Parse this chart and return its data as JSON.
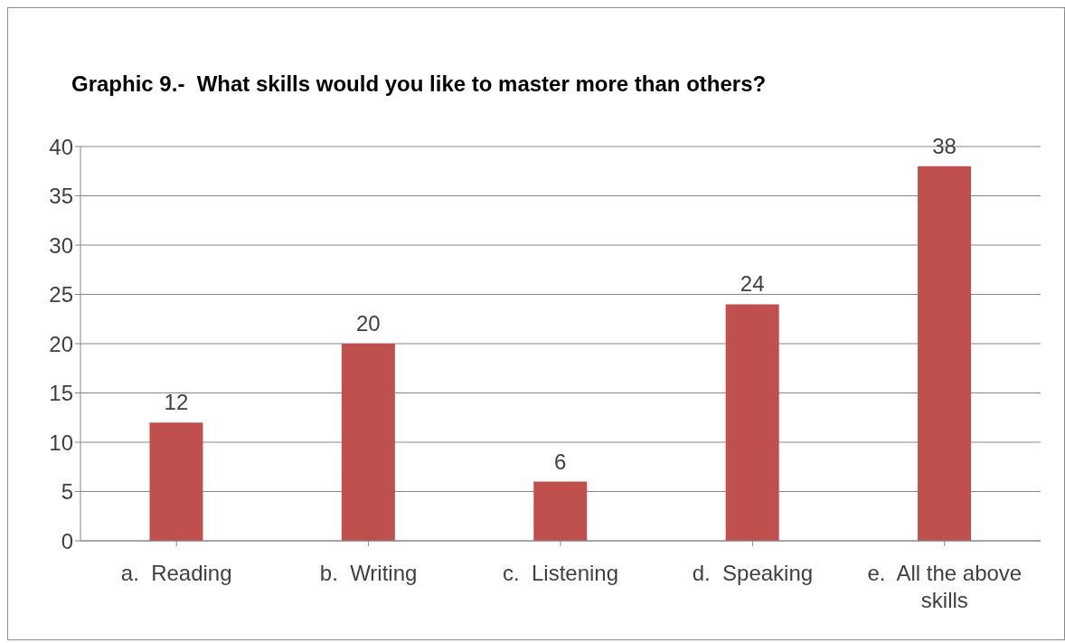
{
  "chart_data": {
    "type": "bar",
    "title": "Graphic 9.-  What skills would you like to master more than others?",
    "categories": [
      "a.  Reading",
      "b.  Writing",
      "c.  Listening",
      "d.  Speaking",
      "e.  All the above skills"
    ],
    "values": [
      12,
      20,
      6,
      24,
      38
    ],
    "color": "#c0504d",
    "ylim": [
      0,
      40
    ],
    "yticks": [
      0,
      5,
      10,
      15,
      20,
      25,
      30,
      35,
      40
    ],
    "grid": "y",
    "data_labels": true
  }
}
